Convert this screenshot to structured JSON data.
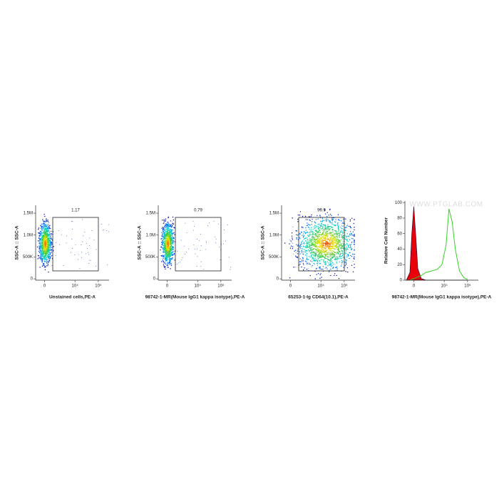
{
  "chart_data": [
    {
      "type": "scatter",
      "xlabel": "Unstained cells,PE-A",
      "ylabel": "SSC-A :: SSC-A",
      "gate_percent": 1.17,
      "xlim": [
        -1000,
        290000
      ],
      "ylim": [
        -30000,
        1680000
      ],
      "xticks": [
        0,
        {
          "value": 10000,
          "label": "10⁴"
        },
        {
          "value": 100000,
          "label": "10⁵"
        }
      ],
      "yticks": [
        0,
        {
          "value": 500000,
          "label": "500K"
        },
        {
          "value": 1000000,
          "label": "1.0M"
        },
        {
          "value": 1500000,
          "label": "1.5M"
        }
      ]
    },
    {
      "type": "scatter",
      "xlabel": "98742-1-MR(Mouse IgG1 kappa isotype),PE-A",
      "ylabel": "SSC-A :: SSC-A",
      "gate_percent": 0.79,
      "xlim": [
        -1000,
        290000
      ],
      "ylim": [
        -30000,
        1680000
      ],
      "xticks": [
        0,
        {
          "value": 10000,
          "label": "10⁴"
        },
        {
          "value": 100000,
          "label": "10⁵"
        }
      ],
      "yticks": [
        0,
        {
          "value": 500000,
          "label": "500K"
        },
        {
          "value": 1000000,
          "label": "1.0M"
        },
        {
          "value": 1500000,
          "label": "1.5M"
        }
      ]
    },
    {
      "type": "scatter",
      "xlabel": "65253-1-Ig CD64(10.1),PE-A",
      "ylabel": "SSC-A :: SSC-A",
      "gate_percent": 99.9,
      "xlim": [
        -1000,
        290000
      ],
      "ylim": [
        -30000,
        1680000
      ],
      "xticks": [
        0,
        {
          "value": 10000,
          "label": "10⁴"
        },
        {
          "value": 100000,
          "label": "10⁵"
        }
      ],
      "yticks": [
        0,
        {
          "value": 500000,
          "label": "500K"
        },
        {
          "value": 1000000,
          "label": "1.0M"
        },
        {
          "value": 1500000,
          "label": "1.5M"
        }
      ]
    },
    {
      "type": "histogram",
      "xlabel": "98742-1-MR(Mouse IgG1 kappa isotype),PE-A",
      "ylabel": "Relative Cell Number",
      "watermark": "WWW.PTGLAB.COM",
      "xlim": [
        -1000,
        290000
      ],
      "ylim": [
        0,
        102
      ],
      "xticks": [
        0,
        {
          "value": 10000,
          "label": "10⁴"
        },
        {
          "value": 100000,
          "label": "10⁵"
        }
      ],
      "yticks": [
        0,
        20,
        40,
        60,
        80,
        100
      ],
      "x": [
        -800,
        -400,
        -200,
        0,
        200,
        400,
        800,
        1500,
        3000,
        5000,
        8000,
        12000,
        16000,
        22000,
        30000,
        45000,
        70000,
        100000
      ],
      "series": [
        {
          "color": "#e8000b",
          "fill": true,
          "values": [
            0,
            10,
            60,
            95,
            55,
            15,
            2,
            0,
            0,
            0,
            0,
            0,
            0,
            0,
            0,
            0,
            0,
            0
          ]
        },
        {
          "color": "#39d12a",
          "fill": false,
          "values": [
            0,
            0,
            1,
            2,
            3,
            4,
            6,
            10,
            12,
            14,
            20,
            45,
            92,
            75,
            40,
            12,
            3,
            1
          ]
        }
      ]
    }
  ]
}
